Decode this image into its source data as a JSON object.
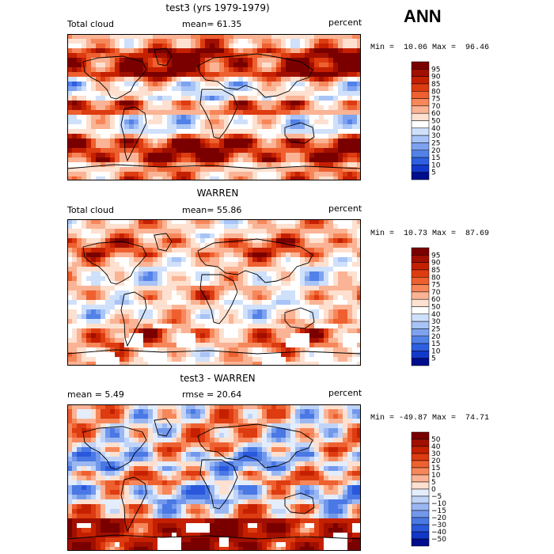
{
  "season": "ANN",
  "panels": [
    {
      "title": "test3 (yrs 1979-1979)",
      "left_label": "Total cloud",
      "center_label": "mean=  61.35",
      "units": "percent",
      "minmax": "Min =  10.06 Max =  96.46"
    },
    {
      "title": "WARREN",
      "left_label": "Total cloud",
      "center_label": "mean=  55.86",
      "units": "percent",
      "minmax": "Min =  10.73 Max =  87.69"
    },
    {
      "title": "test3 - WARREN",
      "left_label": "mean =   5.49",
      "center_label": "rmse =  20.64",
      "units": "percent",
      "minmax": "Min = -49.87 Max =  74.71"
    }
  ],
  "colorbars": {
    "abs": {
      "labels": [
        "95",
        "90",
        "85",
        "80",
        "75",
        "70",
        "60",
        "50",
        "40",
        "30",
        "25",
        "20",
        "15",
        "10",
        "5"
      ],
      "colors": [
        "#7a0000",
        "#a10f00",
        "#c42000",
        "#dd3b10",
        "#ee6030",
        "#f6875a",
        "#fab394",
        "#fde0cf",
        "#ffffff",
        "#cfe0fb",
        "#a8c3f5",
        "#7ea2ef",
        "#5282e8",
        "#2e5fe0",
        "#1339cc",
        "#000d8c"
      ]
    },
    "diff": {
      "labels": [
        "50",
        "40",
        "30",
        "20",
        "15",
        "10",
        "5",
        "0",
        "−5",
        "−10",
        "−15",
        "−20",
        "−30",
        "−40",
        "−50"
      ],
      "colors": [
        "#7a0000",
        "#a10f00",
        "#c42000",
        "#dd3b10",
        "#ee6030",
        "#f6875a",
        "#fab394",
        "#fde0cf",
        "#e4edfc",
        "#c0d4f8",
        "#9ab7f2",
        "#7298ec",
        "#4a78e4",
        "#2a58dc",
        "#1236c8",
        "#000d8c"
      ]
    }
  },
  "chart_data": [
    {
      "type": "heatmap",
      "title": "test3 (yrs 1979-1979)",
      "variable": "Total cloud",
      "units": "percent",
      "mean": 61.35,
      "min": 10.06,
      "max": 96.46,
      "levels": [
        5,
        10,
        15,
        20,
        25,
        30,
        40,
        50,
        60,
        70,
        75,
        80,
        85,
        90,
        95
      ]
    },
    {
      "type": "heatmap",
      "title": "WARREN",
      "variable": "Total cloud",
      "units": "percent",
      "mean": 55.86,
      "min": 10.73,
      "max": 87.69,
      "levels": [
        5,
        10,
        15,
        20,
        25,
        30,
        40,
        50,
        60,
        70,
        75,
        80,
        85,
        90,
        95
      ]
    },
    {
      "type": "heatmap",
      "title": "test3 - WARREN",
      "units": "percent",
      "mean": 5.49,
      "rmse": 20.64,
      "min": -49.87,
      "max": 74.71,
      "levels": [
        -50,
        -40,
        -30,
        -20,
        -15,
        -10,
        -5,
        0,
        5,
        10,
        15,
        20,
        30,
        40,
        50
      ]
    }
  ]
}
